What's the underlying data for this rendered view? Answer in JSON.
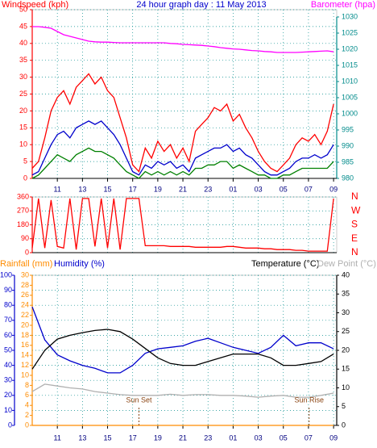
{
  "chart_data": [
    {
      "type": "line",
      "title": "24 hour graph day : 11 May 2013",
      "ylabel": "Windspeed (kph)",
      "y2label": "Barometer (hpa)",
      "xlim": [
        9,
        33.25
      ],
      "xticks": [
        11,
        13,
        15,
        17,
        19,
        21,
        23,
        {
          "value": 25,
          "label": "01"
        },
        {
          "value": 27,
          "label": "03"
        },
        {
          "value": 29,
          "label": "05"
        },
        {
          "value": 31,
          "label": "07"
        },
        {
          "value": 33,
          "label": "09"
        }
      ],
      "ylim": [
        0,
        50
      ],
      "yticks": [
        0,
        5,
        10,
        15,
        20,
        25,
        30,
        35,
        40,
        45,
        50
      ],
      "y2lim": [
        980,
        1030
      ],
      "y2ticks": [
        980,
        985,
        990,
        995,
        1000,
        1005,
        1010,
        1015,
        1020,
        1025,
        1030
      ],
      "grid": true,
      "x": [
        9,
        9.5,
        10,
        10.5,
        11,
        11.5,
        12,
        12.5,
        13,
        13.5,
        14,
        14.5,
        15,
        15.5,
        16,
        16.5,
        17,
        17.5,
        18,
        18.5,
        19,
        19.5,
        20,
        20.5,
        21,
        21.5,
        22,
        22.5,
        23,
        23.5,
        24,
        24.5,
        25,
        25.5,
        26,
        26.5,
        27,
        27.5,
        28,
        28.5,
        29,
        29.5,
        30,
        30.5,
        31,
        31.5,
        32,
        32.5,
        33
      ],
      "series": [
        {
          "color": "#ff0000",
          "axis": "y",
          "values": [
            3,
            5,
            12,
            20,
            24,
            26,
            22,
            27,
            29,
            31,
            28,
            30,
            26,
            24,
            18,
            12,
            4,
            2,
            9,
            6,
            11,
            8,
            10,
            6,
            9,
            5,
            14,
            16,
            18,
            21,
            20,
            22,
            17,
            19,
            15,
            12,
            8,
            5,
            3,
            2,
            4,
            6,
            10,
            12,
            11,
            13,
            10,
            14,
            22
          ]
        },
        {
          "color": "#0000cc",
          "axis": "y",
          "values": [
            1,
            2,
            6,
            10,
            13,
            14,
            12,
            15,
            16,
            17,
            16,
            17,
            15,
            13,
            10,
            6,
            2,
            1,
            4,
            3,
            5,
            4,
            5,
            3,
            4,
            2,
            6,
            7,
            8,
            9,
            9,
            10,
            8,
            9,
            7,
            6,
            4,
            2,
            1,
            1,
            2,
            3,
            5,
            6,
            6,
            7,
            6,
            7,
            10
          ]
        },
        {
          "color": "#008000",
          "axis": "y",
          "values": [
            0,
            1,
            3,
            5,
            7,
            6,
            5,
            7,
            8,
            9,
            8,
            8,
            7,
            6,
            4,
            2,
            1,
            0,
            2,
            1,
            2,
            1,
            2,
            1,
            2,
            1,
            3,
            3,
            4,
            4,
            5,
            5,
            3,
            4,
            3,
            2,
            1,
            1,
            0,
            0,
            1,
            1,
            2,
            3,
            3,
            3,
            3,
            3,
            5
          ]
        },
        {
          "color": "#ff00ff",
          "axis": "y2",
          "values": [
            1027,
            1027,
            1026.8,
            1026.5,
            1025.5,
            1024.5,
            1024,
            1023.5,
            1023,
            1022.5,
            1022.3,
            1022.2,
            1022.2,
            1022.1,
            1022,
            1022,
            1022,
            1022,
            1022,
            1022,
            1022,
            1022,
            1021.8,
            1021.7,
            1021.5,
            1021.4,
            1021.3,
            1021.2,
            1021,
            1020.8,
            1020.5,
            1020.3,
            1020.1,
            1020,
            1019.8,
            1019.6,
            1019.5,
            1019.3,
            1019.2,
            1019,
            1019,
            1019,
            1019,
            1019.1,
            1019.2,
            1019.3,
            1019.4,
            1019.5,
            1019.2
          ]
        }
      ]
    },
    {
      "type": "line",
      "xlim": [
        9,
        33.25
      ],
      "ylim": [
        0,
        360
      ],
      "yticks": [
        0,
        90,
        180,
        270,
        360
      ],
      "y2lim": [
        0,
        360
      ],
      "y2ticks": [
        {
          "value": 360,
          "label": "N"
        },
        {
          "value": 270,
          "label": "W"
        },
        {
          "value": 180,
          "label": "S"
        },
        {
          "value": 90,
          "label": "E"
        },
        {
          "value": 0,
          "label": "N"
        }
      ],
      "grid": true,
      "x": [
        9,
        9.5,
        10,
        10.5,
        11,
        11.5,
        12,
        12.5,
        13,
        13.5,
        14,
        14.5,
        15,
        15.5,
        16,
        16.5,
        17,
        17.5,
        18,
        18.5,
        19,
        19.5,
        20,
        20.5,
        21,
        21.5,
        22,
        22.5,
        23,
        23.5,
        24,
        24.5,
        25,
        25.5,
        26,
        26.5,
        27,
        27.5,
        28,
        28.5,
        29,
        29.5,
        30,
        30.5,
        31,
        31.5,
        32,
        32.5,
        33
      ],
      "series": [
        {
          "color": "#ff0000",
          "axis": "y",
          "values": [
            30,
            350,
            30,
            340,
            40,
            30,
            350,
            20,
            350,
            350,
            40,
            350,
            30,
            350,
            20,
            350,
            350,
            350,
            45,
            45,
            45,
            45,
            40,
            40,
            40,
            40,
            35,
            35,
            35,
            35,
            35,
            40,
            40,
            35,
            30,
            30,
            30,
            25,
            25,
            20,
            20,
            20,
            15,
            15,
            10,
            10,
            10,
            10,
            350
          ]
        }
      ]
    },
    {
      "type": "line",
      "xlim": [
        9,
        33.25
      ],
      "xticks": [
        11,
        13,
        15,
        17,
        19,
        21,
        23,
        {
          "value": 25,
          "label": "01"
        },
        {
          "value": 27,
          "label": "03"
        },
        {
          "value": 29,
          "label": "05"
        },
        {
          "value": 31,
          "label": "07"
        },
        {
          "value": 33,
          "label": "09"
        }
      ],
      "ylim": [
        0,
        100
      ],
      "yticks": [
        0,
        10,
        20,
        30,
        40,
        50,
        60,
        70,
        80,
        90,
        100
      ],
      "y2lim": [
        0,
        40
      ],
      "y2ticks": [
        0,
        5,
        10,
        15,
        20,
        25,
        30,
        35,
        40
      ],
      "y3lim": [
        0,
        30
      ],
      "y3ticks": [
        0,
        2,
        4,
        6,
        8,
        10,
        12,
        14,
        16,
        18,
        20,
        22,
        24,
        26,
        28,
        30
      ],
      "grid": true,
      "x": [
        9,
        10,
        11,
        12,
        13,
        14,
        15,
        16,
        17,
        18,
        19,
        20,
        21,
        22,
        23,
        24,
        25,
        26,
        27,
        28,
        29,
        30,
        31,
        32,
        33
      ],
      "series": [
        {
          "name": "Rainfall (mm)",
          "color": "#ff8c00",
          "axis": "y3",
          "values": [
            0,
            0,
            0,
            0,
            0,
            0,
            0,
            0,
            0,
            0,
            0,
            0,
            0,
            0,
            0,
            0,
            0,
            0,
            0,
            0,
            0,
            0,
            0,
            0,
            0
          ]
        },
        {
          "name": "Humidity (%)",
          "color": "#0000cc",
          "axis": "y",
          "values": [
            79,
            57,
            47,
            43,
            40,
            38,
            35,
            35,
            40,
            48,
            51,
            52,
            53,
            56,
            58,
            55,
            52,
            50,
            48,
            52,
            60,
            53,
            55,
            55,
            51
          ]
        },
        {
          "name": "Temperature (°C)",
          "color": "#000000",
          "axis": "y2",
          "values": [
            15,
            20,
            23,
            24,
            24.7,
            25.3,
            25.6,
            25,
            23,
            20.5,
            18,
            16.5,
            16,
            16,
            17,
            18,
            19,
            19,
            19,
            18,
            16,
            16,
            16.5,
            17,
            19
          ]
        },
        {
          "name": "Dew Point (°C)",
          "color": "#b0b0b0",
          "axis": "y2",
          "values": [
            9,
            11,
            10.5,
            10,
            9.7,
            9,
            8.6,
            8.2,
            8,
            8,
            8,
            8.3,
            8,
            8.2,
            8.2,
            8,
            8,
            7.8,
            7.5,
            7.8,
            8,
            7.5,
            7.5,
            8,
            8.6
          ]
        }
      ],
      "annotations": [
        {
          "text": "Sun Set",
          "x": 17.5
        },
        {
          "text": "Sun Rise",
          "x": 31.05
        }
      ]
    }
  ]
}
